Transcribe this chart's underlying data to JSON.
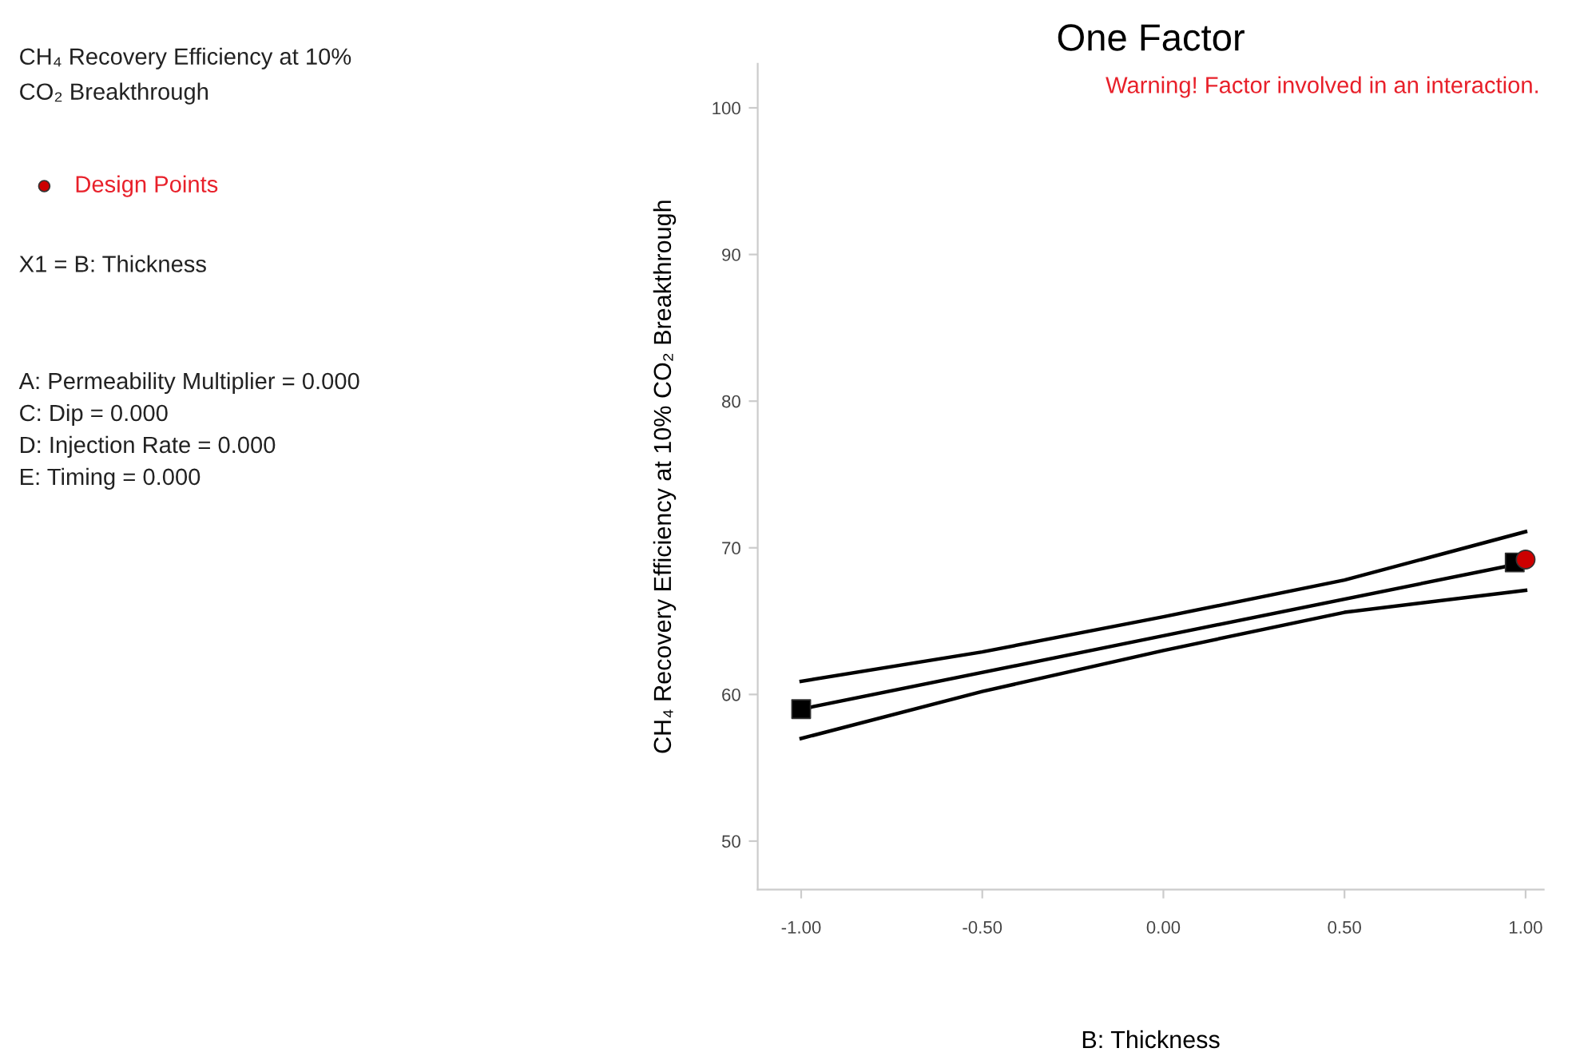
{
  "chart_data": {
    "type": "line",
    "title": "One Factor",
    "xlabel": "B: Thickness",
    "ylabel": "CH₄ Recovery Efficiency at 10% CO₂ Breakthrough",
    "annotations": [
      "Warning! Factor involved in an interaction.",
      "CH₄ Recovery Efficiency at 10%",
      "CO₂ Breakthrough",
      "X1 = B: Thickness",
      "A: Permeability Multiplier = 0.000",
      "C: Dip = 0.000",
      "D: Injection Rate = 0.000",
      "E: Timing = 0.000"
    ],
    "series": [
      {
        "color": "#000000",
        "x": [
          -1,
          -0.5,
          0,
          0.5,
          1
        ],
        "values": [
          57.0,
          60.2,
          63.0,
          65.6,
          67.1
        ],
        "marker": "none"
      },
      {
        "color": "#000000",
        "x": [
          -1,
          0,
          1
        ],
        "values": [
          59.0,
          64.0,
          69.0
        ],
        "marker": "none"
      },
      {
        "color": "#000000",
        "x": [
          -1,
          -0.5,
          0,
          0.5,
          1
        ],
        "values": [
          60.9,
          62.9,
          65.3,
          67.8,
          71.1
        ],
        "marker": "none"
      },
      {
        "type": "scatter",
        "color": "#000000",
        "x": [
          -1,
          0.97
        ],
        "values": [
          59.0,
          69.0
        ],
        "marker": "square"
      },
      {
        "type": "scatter",
        "name": "Design Points",
        "color": "#cc0000",
        "x": [
          1
        ],
        "values": [
          69.2
        ],
        "marker": "circle"
      }
    ],
    "xlim": [
      -1.12,
      1.05
    ],
    "ylim": [
      46.7,
      103
    ],
    "xticks": [
      {
        "value": -1,
        "label": "-1.00"
      },
      {
        "value": -0.5,
        "label": "-0.50"
      },
      {
        "value": 0,
        "label": "0.00"
      },
      {
        "value": 0.5,
        "label": "0.50"
      },
      {
        "value": 1,
        "label": "1.00"
      }
    ],
    "yticks": [
      50,
      60,
      70,
      80,
      90,
      100
    ],
    "grid": false,
    "legend": "left"
  }
}
